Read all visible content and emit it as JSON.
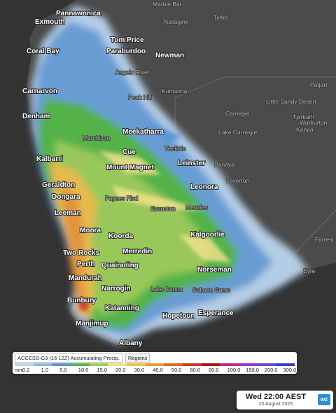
{
  "places": [
    "Pannawonica",
    "Exmouth",
    "Coral Bay",
    "Tom Price",
    "Paraburdoo",
    "Newman",
    "Carnarvon",
    "Denham",
    "Meekatharra",
    "Cue",
    "Kalbarri",
    "Mount Magnet",
    "Leinster",
    "Geraldton",
    "Dongara",
    "Leonora",
    "Leeman",
    "Kalgoorlie",
    "Moora",
    "Koorda",
    "Merredin",
    "Two Rocks",
    "Perth",
    "Quairading",
    "Norseman",
    "Mandurah",
    "Narrogin",
    "Bunbury",
    "Katanning",
    "Hopetoun",
    "Esperance",
    "Manjimup",
    "Albany"
  ],
  "minor_places": [
    "Marble Bar",
    "Telfer",
    "Nullagine",
    "Angelo River",
    "Kumarina",
    "Peak Hill",
    "Patjarr",
    "Little Sandy Desert",
    "Carnegie",
    "Tjirrkarli",
    "Warburton",
    "Lake Carnegie",
    "Kanpa",
    "Murchison",
    "Yeelirrie",
    "Bandya",
    "Laverton",
    "Paynes Find",
    "Evanston",
    "Menzies",
    "Lake Camm",
    "Salmon Gums",
    "Forrest",
    "Eyre"
  ],
  "legend": {
    "title": "ACCESS-G3 (16 12Z) Accumulating Precip.",
    "button": "Regions",
    "unit": "mm",
    "scale": [
      {
        "label": "0.2",
        "color": "#b9d4ee"
      },
      {
        "label": "1.0",
        "color": "#8fb9e6"
      },
      {
        "label": "5.0",
        "color": "#5a94d8"
      },
      {
        "label": "10.0",
        "color": "#55b84a"
      },
      {
        "label": "15.0",
        "color": "#9ccf5a"
      },
      {
        "label": "20.0",
        "color": "#f0e08a"
      },
      {
        "label": "30.0",
        "color": "#f0c050"
      },
      {
        "label": "40.0",
        "color": "#eb9a3a"
      },
      {
        "label": "50.0",
        "color": "#e06a28"
      },
      {
        "label": "60.0",
        "color": "#d23a22"
      },
      {
        "label": "80.0",
        "color": "#a81a1a"
      },
      {
        "label": "100.0",
        "color": "#c02a8a"
      },
      {
        "label": "150.0",
        "color": "#9a3cc0"
      },
      {
        "label": "200.0",
        "color": "#6a4ad0"
      },
      {
        "label": "300.0",
        "color": "#3a3ad8"
      }
    ]
  },
  "timebox": {
    "time": "Wed 22:00 AEST",
    "date": "20 August 2025",
    "logo": "wz"
  }
}
